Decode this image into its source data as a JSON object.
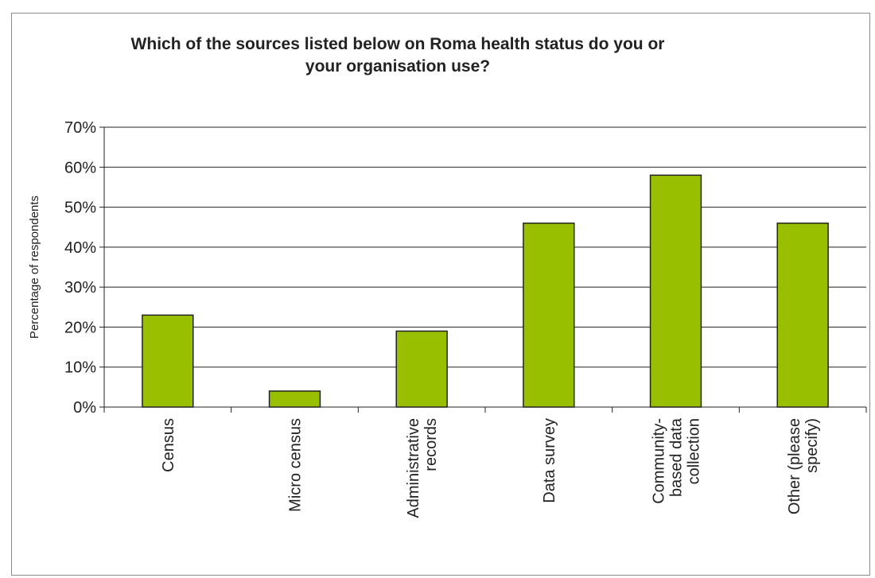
{
  "chart_data": {
    "type": "bar",
    "title_lines": [
      "Which of the sources listed below on Roma health status do you or",
      "your organisation use?"
    ],
    "ylabel": "Percentage of respondents",
    "xlabel": "",
    "ylim": [
      0,
      70
    ],
    "yticks": [
      "0%",
      "10%",
      "20%",
      "30%",
      "40%",
      "50%",
      "60%",
      "70%"
    ],
    "grid": true,
    "categories": [
      [
        "Census"
      ],
      [
        "Micro census"
      ],
      [
        "Administrative",
        "records"
      ],
      [
        "Data survey"
      ],
      [
        "Community-",
        "based data",
        "collection"
      ],
      [
        "Other (please",
        "specify)"
      ]
    ],
    "values": [
      23,
      4,
      19,
      46,
      58,
      46
    ],
    "bar_color": "#99c000",
    "bar_edge_color": "#222222"
  }
}
